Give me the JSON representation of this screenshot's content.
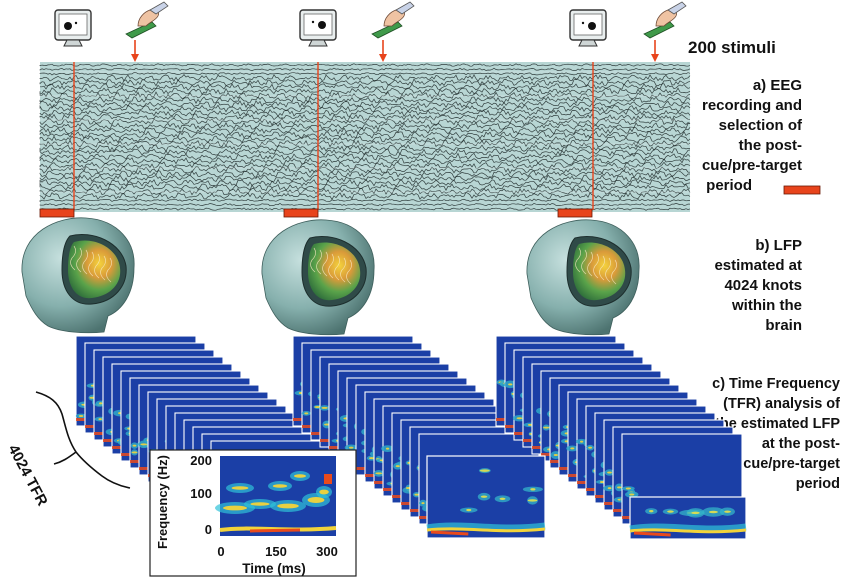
{
  "labels": {
    "stimuli": "200 stimuli",
    "step_a": [
      "a) EEG",
      "recording and",
      "selection of",
      "the post-",
      "cue/pre-target",
      "period"
    ],
    "step_b": [
      "b) LFP",
      "estimated at",
      "4024 knots",
      "within the",
      "brain"
    ],
    "step_c": [
      "c) Time Frequency",
      "(TFR) analysis of",
      "the estimated LFP",
      "at the post-",
      "cue/pre-target",
      "period"
    ],
    "tfr_count": "4024 TFR"
  },
  "inset": {
    "ylabel": "Frequency (Hz)",
    "xlabel": "Time (ms)",
    "y_ticks": [
      "200",
      "100",
      "0"
    ],
    "x_ticks": [
      "0",
      "150",
      "300"
    ]
  },
  "icons": [
    "monitor-icon",
    "hand-button-icon",
    "head-brain-icon",
    "arrow-down-icon"
  ],
  "colors": {
    "eeg_bg": "#b8d6d4",
    "eeg_trace": "#1a2424",
    "marker": "#e8441c",
    "tfr_blue": "#1b3fa6",
    "head": "#8fb7b4"
  }
}
